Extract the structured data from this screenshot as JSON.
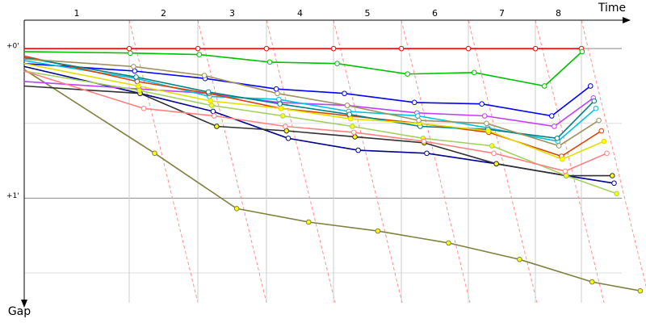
{
  "chart_data": {
    "type": "gap-line",
    "x_label": "Time",
    "y_label": "Gap",
    "categories": [
      null,
      "1",
      "2",
      "3",
      "4",
      "5",
      "6",
      "7",
      "8"
    ],
    "ylim": [
      -0.19,
      1.7
    ],
    "yticks": [
      {
        "value": 0,
        "label": "+0'"
      },
      {
        "value": 0.5,
        "label": null
      },
      {
        "value": 1,
        "label": "+1'"
      },
      {
        "value": 1.5,
        "label": null
      }
    ],
    "grid": true,
    "series": [
      {
        "color": "#ff0000",
        "marker": "#ffffff",
        "values": [
          0,
          0,
          0,
          0,
          0,
          0,
          0,
          0,
          0
        ]
      },
      {
        "color": "#00c000",
        "marker": "#ffffff",
        "values": [
          0.02,
          0.03,
          0.04,
          0.09,
          0.1,
          0.17,
          0.16,
          0.25,
          0.02
        ]
      },
      {
        "color": "#808040",
        "marker": "#ffff00",
        "values": [
          0.14,
          0.7,
          1.07,
          1.16,
          1.22,
          1.3,
          1.41,
          1.56,
          1.62
        ]
      },
      {
        "color": "#000090",
        "marker": "#ffffff",
        "values": [
          0.12,
          0.3,
          0.42,
          0.6,
          0.68,
          0.7,
          0.77,
          0.85,
          0.9
        ]
      },
      {
        "color": "#303030",
        "marker": "#ffff00",
        "values": [
          0.25,
          0.3,
          0.52,
          0.55,
          0.59,
          0.63,
          0.77,
          0.85,
          0.85
        ]
      },
      {
        "color": "#0000ff",
        "marker": "#ffffff",
        "values": [
          0.1,
          0.15,
          0.2,
          0.27,
          0.3,
          0.36,
          0.37,
          0.45,
          0.25
        ]
      },
      {
        "color": "#c040ff",
        "marker": "#ffffff",
        "values": [
          0.22,
          0.27,
          0.3,
          0.36,
          0.38,
          0.43,
          0.45,
          0.52,
          0.33
        ]
      },
      {
        "color": "#00c0e0",
        "marker": "#ffffff",
        "values": [
          0.08,
          0.2,
          0.32,
          0.34,
          0.42,
          0.45,
          0.53,
          0.62,
          0.4
        ]
      },
      {
        "color": "#e04000",
        "marker": "#ffffff",
        "values": [
          0.05,
          0.22,
          0.3,
          0.4,
          0.45,
          0.5,
          0.56,
          0.72,
          0.55
        ]
      },
      {
        "color": "#008080",
        "marker": "#ffffff",
        "values": [
          0.06,
          0.19,
          0.29,
          0.37,
          0.44,
          0.52,
          0.54,
          0.6,
          0.35
        ]
      },
      {
        "color": "#e0e000",
        "marker": "#ffff00",
        "values": [
          0.1,
          0.25,
          0.35,
          0.4,
          0.47,
          0.5,
          0.55,
          0.74,
          0.62
        ]
      },
      {
        "color": "#a0d060",
        "marker": "#ffff00",
        "values": [
          0.15,
          0.28,
          0.38,
          0.45,
          0.52,
          0.6,
          0.65,
          0.85,
          0.97
        ]
      },
      {
        "color": "#a09060",
        "marker": "#ffffff",
        "values": [
          0.07,
          0.12,
          0.18,
          0.3,
          0.38,
          0.48,
          0.5,
          0.65,
          0.48
        ]
      },
      {
        "color": "#ff8080",
        "marker": "#ffffff",
        "values": [
          0.15,
          0.4,
          0.45,
          0.52,
          0.56,
          0.62,
          0.7,
          0.82,
          0.7
        ]
      }
    ]
  }
}
